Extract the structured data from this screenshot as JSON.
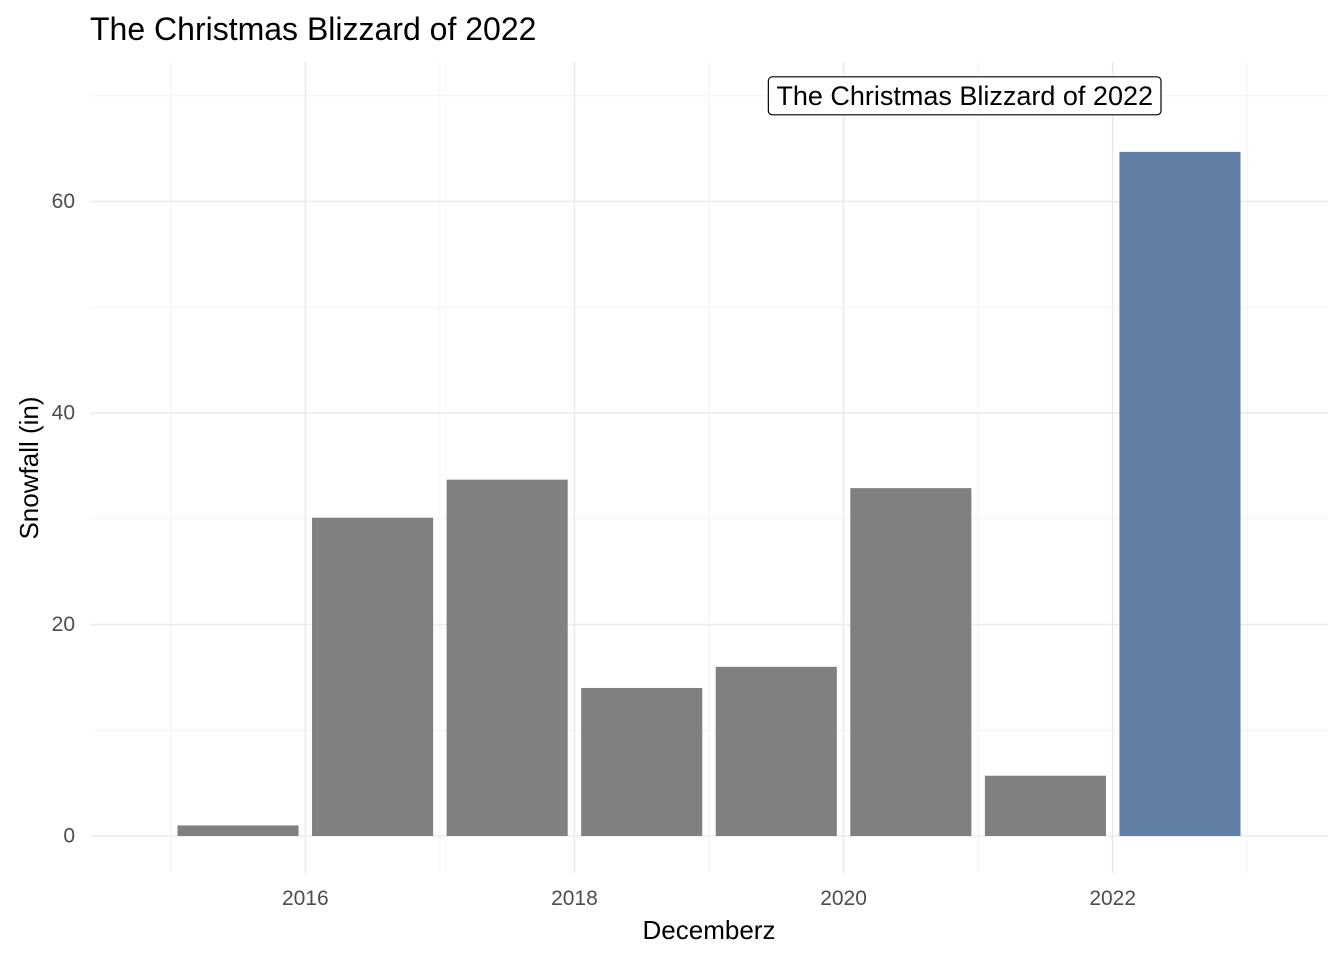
{
  "chart_data": {
    "type": "bar",
    "title": "The Christmas Blizzard of 2022",
    "xlabel": "Decemberz",
    "ylabel": "Snowfall (in)",
    "x": [
      2015,
      2016,
      2017,
      2018,
      2019,
      2020,
      2021,
      2022
    ],
    "values": [
      1.0,
      30.1,
      33.7,
      14.0,
      16.0,
      32.9,
      5.7,
      64.7
    ],
    "highlight_x": 2022,
    "bar_color": "#808080",
    "highlight_color": "#6280a5",
    "xlim": [
      2014.4,
      2023.6
    ],
    "ylim": [
      -3.5,
      73.2
    ],
    "xticks": [
      "2016",
      "2018",
      "2020",
      "2022"
    ],
    "yticks": [
      "0",
      "20",
      "40",
      "60"
    ],
    "grid": true,
    "annotation": {
      "label": "The Christmas Blizzard of 2022",
      "x": 2020.9,
      "y": 70.0
    }
  }
}
